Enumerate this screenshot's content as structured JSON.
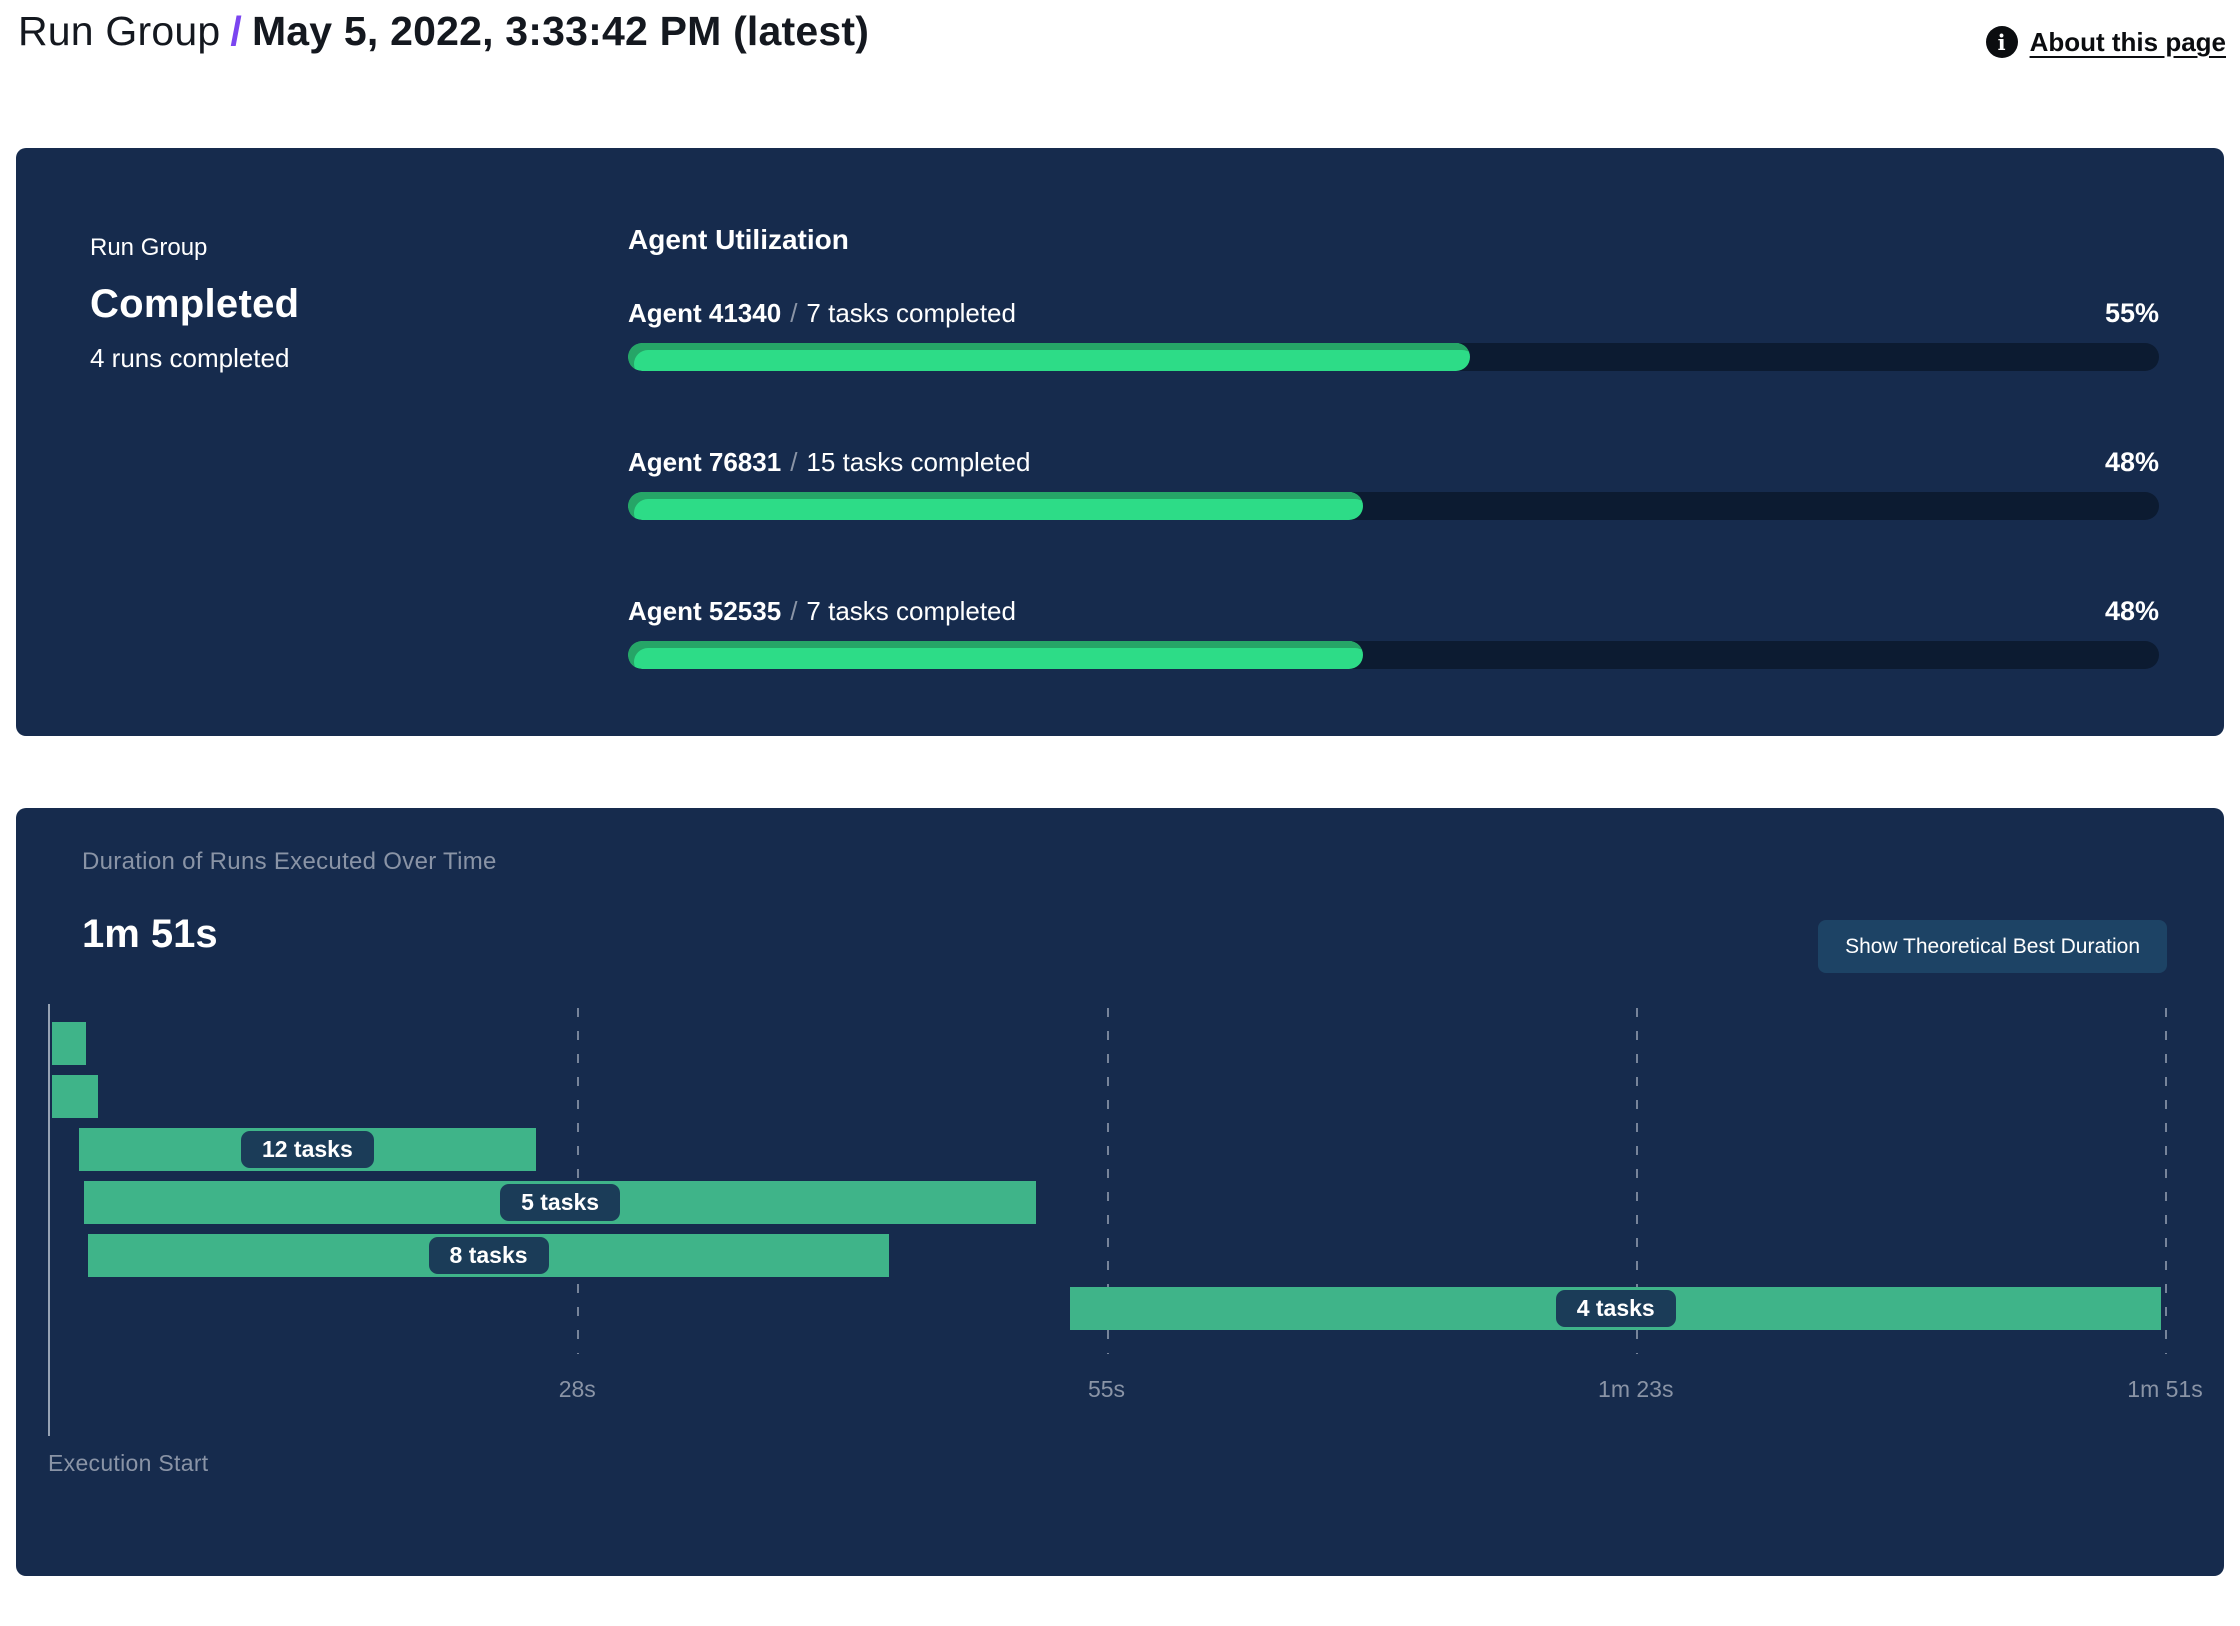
{
  "header": {
    "title_prefix": "Run Group",
    "title_separator": "/",
    "title_main": "May 5, 2022, 3:33:42 PM (latest)",
    "about_link": "About this page",
    "info_icon_glyph": "i"
  },
  "colors": {
    "page_bg": "#FFFFFF",
    "panel_bg": "#162B4D",
    "progress_track": "#0C1B31",
    "progress_fill": "#2DDC87",
    "progress_fill_edge": "#26A567",
    "gantt_bar": "#3FB489",
    "pill_bg": "#1B3C58",
    "button_bg": "#1D4365",
    "muted_text": "#8A94A6",
    "header_text": "#14181F",
    "accent_slash": "#7B45F0",
    "grid_color": "#97A2B4"
  },
  "status_panel": {
    "label": "Run Group",
    "status": "Completed",
    "sub": "4 runs completed"
  },
  "agent_utilization": {
    "title": "Agent Utilization",
    "separator": "/",
    "agents": [
      {
        "name": "Agent 41340",
        "tasks": "7 tasks completed",
        "pct": 55,
        "pct_label": "55%"
      },
      {
        "name": "Agent 76831",
        "tasks": "15 tasks completed",
        "pct": 48,
        "pct_label": "48%"
      },
      {
        "name": "Agent 52535",
        "tasks": "7 tasks completed",
        "pct": 48,
        "pct_label": "48%"
      }
    ]
  },
  "duration_panel": {
    "subtitle": "Duration of Runs Executed Over Time",
    "total_duration": "1m 51s",
    "button_label": "Show Theoretical Best Duration",
    "axis_origin_label": "Execution Start"
  },
  "chart_data": {
    "type": "gantt",
    "title": "Duration of Runs Executed Over Time",
    "total_duration_s": 111,
    "total_duration_label": "1m 51s",
    "x_axis_origin_label": "Execution Start",
    "x_ticks": [
      {
        "s": 27.75,
        "label": "28s"
      },
      {
        "s": 55.5,
        "label": "55s"
      },
      {
        "s": 83.25,
        "label": "1m 23s"
      },
      {
        "s": 111,
        "label": "1m 51s"
      }
    ],
    "bars": [
      {
        "start_s": 0.2,
        "end_s": 2.0,
        "label": ""
      },
      {
        "start_s": 0.2,
        "end_s": 2.6,
        "label": ""
      },
      {
        "start_s": 1.6,
        "end_s": 25.6,
        "label": "12 tasks"
      },
      {
        "start_s": 1.9,
        "end_s": 51.8,
        "label": "5 tasks"
      },
      {
        "start_s": 2.1,
        "end_s": 44.1,
        "label": "8 tasks"
      },
      {
        "start_s": 53.6,
        "end_s": 110.8,
        "label": "4 tasks"
      }
    ]
  }
}
